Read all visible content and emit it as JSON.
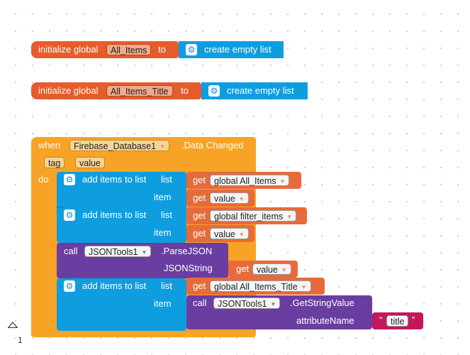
{
  "globals": [
    {
      "prefix": "initialize global",
      "name": "All_Items",
      "to": "to",
      "value": "create empty list"
    },
    {
      "prefix": "initialize global",
      "name": "All_Items_Title",
      "to": "to",
      "value": "create empty list"
    }
  ],
  "event": {
    "when": "when",
    "component": "Firebase_Database1",
    "event_name": ".Data Changed",
    "params": [
      "tag",
      "value"
    ],
    "do": "do"
  },
  "statements": {
    "add1": {
      "label": "add items to list",
      "list_label": "list",
      "item_label": "item",
      "get": "get",
      "list_var": "global All_Items",
      "item_var": "value"
    },
    "add2": {
      "label": "add items to list",
      "list_label": "list",
      "item_label": "item",
      "get": "get",
      "list_var": "global filter_items",
      "item_var": "value"
    },
    "call1": {
      "call": "call",
      "component": "JSONTools1",
      "method": ".ParseJSON",
      "arg_label": "JSONString",
      "get": "get",
      "arg_var": "value"
    },
    "add3": {
      "label": "add items to list",
      "list_label": "list",
      "item_label": "item",
      "get": "get",
      "list_var": "global All_Items_Title"
    },
    "call2": {
      "call": "call",
      "component": "JSONTools1",
      "method": ".GetStringValue",
      "arg_label": "attributeName",
      "string_value": "title",
      "quote_open": "“",
      "quote_close": "”"
    }
  },
  "footer": {
    "page": "1"
  },
  "colors": {
    "variables": "#e65c2b",
    "event": "#f7a325",
    "lists": "#0e9ee0",
    "component": "#6a3ea1",
    "text": "#c2185b"
  }
}
